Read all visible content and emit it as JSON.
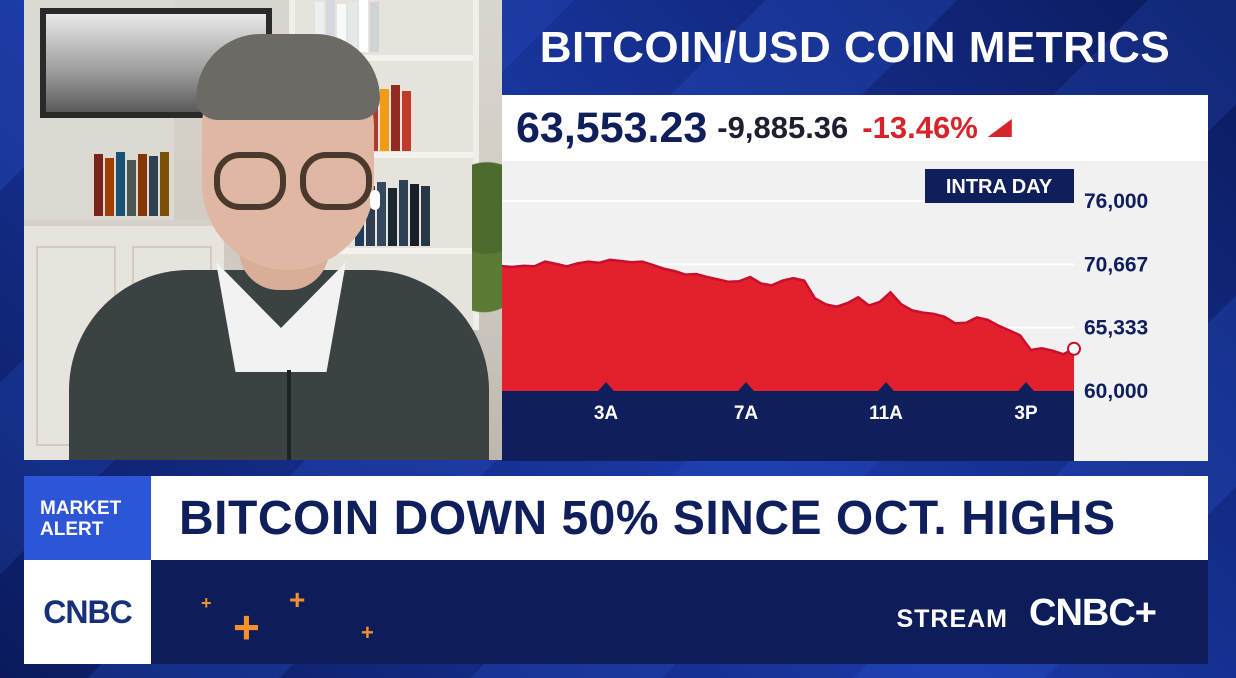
{
  "header": {
    "title": "BITCOIN/USD COIN METRICS",
    "price": "63,553.23",
    "change": "-9,885.36",
    "percent_change": "-13.46%",
    "trend_direction": "down"
  },
  "chart_data": {
    "type": "area",
    "label": "INTRA DAY",
    "x_ticks": [
      "3A",
      "7A",
      "11A",
      "3P"
    ],
    "y_ticks": [
      "76,000",
      "70,667",
      "65,333",
      "60,000"
    ],
    "ylim": [
      60000,
      76000
    ],
    "series": [
      {
        "values": [
          70500,
          70450,
          70550,
          70500,
          70900,
          70700,
          70500,
          70750,
          70900,
          70800,
          71050,
          70950,
          70850,
          70900,
          70600,
          70300,
          70100,
          69800,
          69850,
          69600,
          69400,
          69200,
          69250,
          69600,
          69050,
          68900,
          69300,
          69500,
          69300,
          67800,
          67300,
          67100,
          67400,
          67900,
          67200,
          67500,
          68300,
          67300,
          66800,
          66600,
          66500,
          66250,
          65700,
          65750,
          66200,
          66000,
          65500,
          65100,
          64700,
          63450,
          63600,
          63400,
          63100,
          63553
        ]
      }
    ],
    "line_color": "#c8102e",
    "fill_color": "#e3202b",
    "grid": true
  },
  "banner": {
    "alert_line1": "MARKET",
    "alert_line2": "ALERT",
    "headline": "BITCOIN DOWN 50% SINCE OCT. HIGHS",
    "network_logo": "CNBC",
    "stream_label": "STREAM",
    "stream_logo": "CNBC+"
  },
  "colors": {
    "navy": "#0f1f5c",
    "alert_blue": "#2d55d8",
    "down_red": "#d8232a",
    "accent_orange": "#f5902a"
  },
  "icons": [
    "plus-icon",
    "down-arrow-icon"
  ]
}
